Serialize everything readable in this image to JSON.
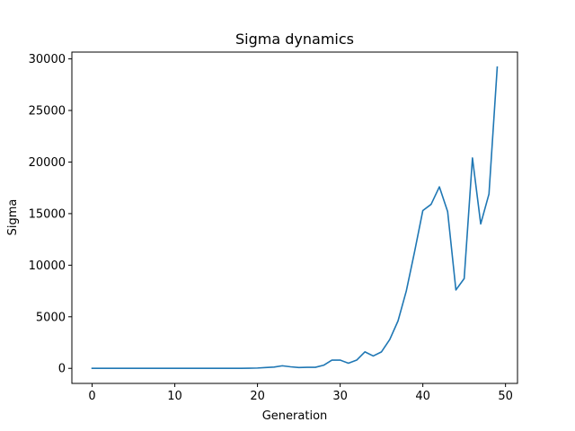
{
  "chart_data": {
    "type": "line",
    "title": "Sigma dynamics",
    "xlabel": "Generation",
    "ylabel": "Sigma",
    "xlim": [
      -2.45,
      51.45
    ],
    "ylim": [
      -1460,
      30660
    ],
    "xticks": [
      0,
      10,
      20,
      30,
      40,
      50
    ],
    "xtick_labels": [
      "0",
      "10",
      "20",
      "30",
      "40",
      "50"
    ],
    "yticks": [
      0,
      5000,
      10000,
      15000,
      20000,
      25000,
      30000
    ],
    "ytick_labels": [
      "0",
      "5000",
      "10000",
      "15000",
      "20000",
      "25000",
      "30000"
    ],
    "grid": false,
    "series": [
      {
        "color": "#1f77b4",
        "x": [
          0,
          1,
          2,
          3,
          4,
          5,
          6,
          7,
          8,
          9,
          10,
          11,
          12,
          13,
          14,
          15,
          16,
          17,
          18,
          19,
          20,
          21,
          22,
          23,
          24,
          25,
          26,
          27,
          28,
          29,
          30,
          31,
          32,
          33,
          34,
          35,
          36,
          37,
          38,
          39,
          40,
          41,
          42,
          43,
          44,
          45,
          46,
          47,
          48,
          49
        ],
        "values": [
          0,
          0,
          0,
          0,
          0,
          0,
          0,
          0,
          0,
          0,
          0,
          0,
          0,
          0,
          0,
          0,
          0,
          0,
          0,
          10,
          30,
          80,
          120,
          250,
          150,
          80,
          100,
          100,
          300,
          800,
          800,
          500,
          800,
          1600,
          1200,
          1600,
          2800,
          4600,
          7500,
          11300,
          15300,
          15900,
          17600,
          15200,
          7600,
          8700,
          20400,
          14000,
          16900,
          29200
        ]
      }
    ]
  }
}
